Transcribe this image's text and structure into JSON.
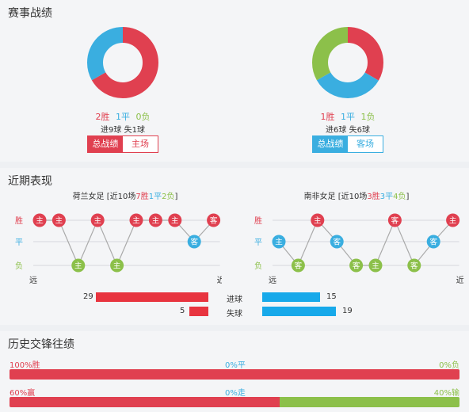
{
  "colors": {
    "win": "#e04050",
    "draw": "#3aaee0",
    "loss": "#8cc04a",
    "blue_btn": "#3aaee0",
    "bar_blue": "#17a9ea"
  },
  "section1": {
    "title": "赛事战绩",
    "left": {
      "win": "2胜",
      "draw": "1平",
      "loss": "0负",
      "goals_for": "进9球",
      "goals_against": "失1球",
      "tab_total": "总战绩",
      "tab_venue": "主场",
      "record": {
        "win": 2,
        "draw": 1,
        "loss": 0
      }
    },
    "right": {
      "win": "1胜",
      "draw": "1平",
      "loss": "1负",
      "goals_for": "进6球",
      "goals_against": "失6球",
      "tab_total": "总战绩",
      "tab_venue": "客场",
      "record": {
        "win": 1,
        "draw": 1,
        "loss": 1
      }
    }
  },
  "section2": {
    "title": "近期表现",
    "left": {
      "team": "荷兰女足",
      "bracket_open": "[近10场",
      "wins": "7胜",
      "draws": "1平",
      "losses": "2负",
      "bracket_close": "]",
      "y_win": "胜",
      "y_draw": "平",
      "y_loss": "负",
      "x_far": "远",
      "x_near": "近",
      "matches": [
        {
          "result": "W",
          "venue": "主"
        },
        {
          "result": "W",
          "venue": "主"
        },
        {
          "result": "L",
          "venue": "主"
        },
        {
          "result": "W",
          "venue": "主"
        },
        {
          "result": "L",
          "venue": "主"
        },
        {
          "result": "W",
          "venue": "主"
        },
        {
          "result": "W",
          "venue": "主"
        },
        {
          "result": "W",
          "venue": "主"
        },
        {
          "result": "D",
          "venue": "客"
        },
        {
          "result": "W",
          "venue": "客"
        }
      ]
    },
    "right": {
      "team": "南非女足",
      "bracket_open": "[近10场",
      "wins": "3胜",
      "draws": "3平",
      "losses": "4负",
      "bracket_close": "]",
      "y_win": "胜",
      "y_draw": "平",
      "y_loss": "负",
      "x_far": "远",
      "x_near": "近",
      "matches": [
        {
          "result": "D",
          "venue": "主"
        },
        {
          "result": "L",
          "venue": "客"
        },
        {
          "result": "W",
          "venue": "主"
        },
        {
          "result": "D",
          "venue": "客"
        },
        {
          "result": "L",
          "venue": "客"
        },
        {
          "result": "L",
          "venue": "主"
        },
        {
          "result": "W",
          "venue": "客"
        },
        {
          "result": "L",
          "venue": "客"
        },
        {
          "result": "D",
          "venue": "客"
        },
        {
          "result": "W",
          "venue": "主"
        }
      ]
    },
    "goals_label": "进球",
    "conceded_label": "失球",
    "left_goals": "29",
    "left_conceded": "5",
    "right_goals": "15",
    "right_conceded": "19",
    "goal_values": {
      "left_goals": 29,
      "left_conceded": 5,
      "right_goals": 15,
      "right_conceded": 19
    }
  },
  "section3": {
    "title": "历史交锋往绩",
    "row1": {
      "left": "100%胜",
      "mid": "0%平",
      "right": "0%负",
      "win_pct": 100,
      "draw_pct": 0,
      "loss_pct": 0
    },
    "row2": {
      "left": "60%赢",
      "mid": "0%走",
      "right": "40%输",
      "win_pct": 60,
      "draw_pct": 0,
      "loss_pct": 40
    }
  }
}
